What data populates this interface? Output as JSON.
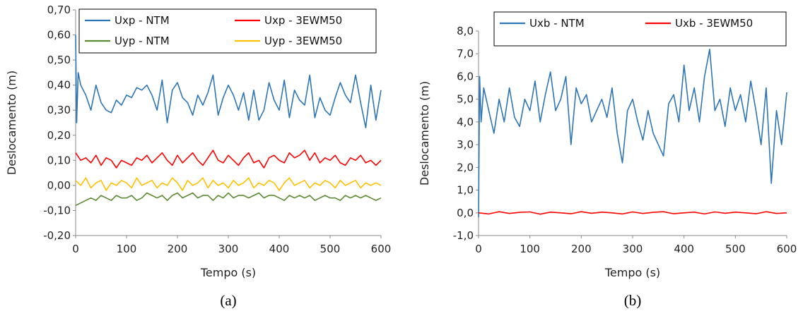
{
  "chart_data": [
    {
      "type": "line",
      "caption": "(a)",
      "xlabel": "Tempo (s)",
      "ylabel": "Deslocamento (m)",
      "xlim": [
        0,
        600
      ],
      "ylim": [
        -0.2,
        0.7
      ],
      "xticks": [
        "0",
        "100",
        "200",
        "300",
        "400",
        "500",
        "600"
      ],
      "yticks": [
        "0,70",
        "0,60",
        "0,50",
        "0,40",
        "0,30",
        "0,20",
        "0,10",
        "0,00",
        "-0,10",
        "-0,20"
      ],
      "legend_position": "top",
      "series": [
        {
          "name": "Uxp - NTM",
          "color": "#2e75b6",
          "x": [
            0,
            2,
            5,
            10,
            20,
            30,
            40,
            50,
            60,
            70,
            80,
            90,
            100,
            110,
            120,
            130,
            140,
            150,
            160,
            170,
            180,
            190,
            200,
            210,
            220,
            230,
            240,
            250,
            260,
            270,
            280,
            290,
            300,
            310,
            320,
            330,
            340,
            350,
            360,
            370,
            380,
            390,
            400,
            410,
            420,
            430,
            440,
            450,
            460,
            470,
            480,
            490,
            500,
            510,
            520,
            530,
            540,
            550,
            560,
            570,
            580,
            590,
            600
          ],
          "values": [
            0.6,
            0.25,
            0.45,
            0.4,
            0.36,
            0.3,
            0.4,
            0.33,
            0.3,
            0.29,
            0.34,
            0.32,
            0.36,
            0.35,
            0.39,
            0.38,
            0.4,
            0.36,
            0.3,
            0.42,
            0.25,
            0.38,
            0.41,
            0.35,
            0.33,
            0.28,
            0.36,
            0.32,
            0.37,
            0.44,
            0.28,
            0.35,
            0.4,
            0.36,
            0.3,
            0.37,
            0.26,
            0.38,
            0.26,
            0.3,
            0.41,
            0.34,
            0.3,
            0.42,
            0.27,
            0.38,
            0.34,
            0.32,
            0.44,
            0.27,
            0.35,
            0.3,
            0.28,
            0.35,
            0.41,
            0.36,
            0.33,
            0.44,
            0.33,
            0.23,
            0.4,
            0.26,
            0.38
          ]
        },
        {
          "name": "Uxp - 3EWM50",
          "color": "#ff0000",
          "x": [
            0,
            10,
            20,
            30,
            40,
            50,
            60,
            70,
            80,
            90,
            100,
            110,
            120,
            130,
            140,
            150,
            160,
            170,
            180,
            190,
            200,
            210,
            220,
            230,
            240,
            250,
            260,
            270,
            280,
            290,
            300,
            310,
            320,
            330,
            340,
            350,
            360,
            370,
            380,
            390,
            400,
            410,
            420,
            430,
            440,
            450,
            460,
            470,
            480,
            490,
            500,
            510,
            520,
            530,
            540,
            550,
            560,
            570,
            580,
            590,
            600
          ],
          "values": [
            0.13,
            0.1,
            0.11,
            0.09,
            0.12,
            0.08,
            0.11,
            0.1,
            0.07,
            0.1,
            0.09,
            0.08,
            0.11,
            0.1,
            0.12,
            0.09,
            0.11,
            0.13,
            0.1,
            0.08,
            0.12,
            0.09,
            0.11,
            0.13,
            0.1,
            0.08,
            0.11,
            0.14,
            0.1,
            0.09,
            0.12,
            0.1,
            0.08,
            0.11,
            0.13,
            0.09,
            0.1,
            0.07,
            0.11,
            0.12,
            0.1,
            0.09,
            0.13,
            0.11,
            0.12,
            0.14,
            0.1,
            0.13,
            0.09,
            0.11,
            0.1,
            0.12,
            0.09,
            0.08,
            0.11,
            0.1,
            0.12,
            0.09,
            0.1,
            0.08,
            0.1
          ]
        },
        {
          "name": "Uyp - NTM",
          "color": "#5a8a32",
          "x": [
            0,
            10,
            20,
            30,
            40,
            50,
            60,
            70,
            80,
            90,
            100,
            110,
            120,
            130,
            140,
            150,
            160,
            170,
            180,
            190,
            200,
            210,
            220,
            230,
            240,
            250,
            260,
            270,
            280,
            290,
            300,
            310,
            320,
            330,
            340,
            350,
            360,
            370,
            380,
            390,
            400,
            410,
            420,
            430,
            440,
            450,
            460,
            470,
            480,
            490,
            500,
            510,
            520,
            530,
            540,
            550,
            560,
            570,
            580,
            590,
            600
          ],
          "values": [
            -0.08,
            -0.07,
            -0.06,
            -0.05,
            -0.06,
            -0.04,
            -0.05,
            -0.06,
            -0.04,
            -0.05,
            -0.05,
            -0.04,
            -0.06,
            -0.05,
            -0.03,
            -0.04,
            -0.05,
            -0.04,
            -0.06,
            -0.04,
            -0.03,
            -0.05,
            -0.04,
            -0.03,
            -0.05,
            -0.04,
            -0.04,
            -0.06,
            -0.04,
            -0.05,
            -0.03,
            -0.05,
            -0.04,
            -0.04,
            -0.05,
            -0.04,
            -0.03,
            -0.05,
            -0.04,
            -0.04,
            -0.05,
            -0.06,
            -0.04,
            -0.05,
            -0.04,
            -0.05,
            -0.04,
            -0.06,
            -0.05,
            -0.04,
            -0.05,
            -0.05,
            -0.06,
            -0.04,
            -0.05,
            -0.04,
            -0.05,
            -0.04,
            -0.05,
            -0.06,
            -0.05
          ]
        },
        {
          "name": "Uyp - 3EWM50",
          "color": "#ffc000",
          "x": [
            0,
            10,
            20,
            30,
            40,
            50,
            60,
            70,
            80,
            90,
            100,
            110,
            120,
            130,
            140,
            150,
            160,
            170,
            180,
            190,
            200,
            210,
            220,
            230,
            240,
            250,
            260,
            270,
            280,
            290,
            300,
            310,
            320,
            330,
            340,
            350,
            360,
            370,
            380,
            390,
            400,
            410,
            420,
            430,
            440,
            450,
            460,
            470,
            480,
            490,
            500,
            510,
            520,
            530,
            540,
            550,
            560,
            570,
            580,
            590,
            600
          ],
          "values": [
            0.02,
            0.0,
            0.03,
            -0.01,
            0.01,
            0.02,
            -0.02,
            0.01,
            0.0,
            0.02,
            0.01,
            -0.01,
            0.03,
            0.0,
            0.01,
            0.02,
            -0.01,
            0.01,
            0.0,
            0.03,
            0.01,
            -0.02,
            0.02,
            0.0,
            0.01,
            0.03,
            -0.01,
            0.02,
            0.0,
            0.01,
            -0.01,
            0.02,
            0.0,
            0.01,
            0.03,
            -0.01,
            0.01,
            0.0,
            0.02,
            0.01,
            -0.02,
            0.01,
            0.03,
            0.0,
            0.01,
            0.02,
            -0.01,
            0.01,
            0.0,
            0.02,
            0.01,
            -0.01,
            0.02,
            0.0,
            0.01,
            0.02,
            -0.01,
            0.01,
            0.0,
            0.01,
            0.0
          ]
        }
      ]
    },
    {
      "type": "line",
      "caption": "(b)",
      "xlabel": "Tempo (s)",
      "ylabel": "Deslocamento (m)",
      "xlim": [
        0,
        600
      ],
      "ylim": [
        -1.0,
        8.0
      ],
      "xticks": [
        "0",
        "100",
        "200",
        "300",
        "400",
        "500",
        "600"
      ],
      "yticks": [
        "8,0",
        "7,0",
        "6,0",
        "5,0",
        "4,0",
        "3,0",
        "2,0",
        "1,0",
        "0,0",
        "-1,0"
      ],
      "legend_position": "top",
      "series": [
        {
          "name": "Uxb - NTM",
          "color": "#2e75b6",
          "x": [
            0,
            2,
            5,
            10,
            20,
            30,
            40,
            50,
            60,
            70,
            80,
            90,
            100,
            110,
            120,
            130,
            140,
            150,
            160,
            170,
            180,
            190,
            200,
            210,
            220,
            230,
            240,
            250,
            260,
            270,
            280,
            290,
            300,
            310,
            320,
            330,
            340,
            350,
            360,
            370,
            380,
            390,
            400,
            410,
            420,
            430,
            440,
            450,
            460,
            470,
            480,
            490,
            500,
            510,
            520,
            530,
            540,
            550,
            560,
            570,
            580,
            590,
            600
          ],
          "values": [
            -0.2,
            6.0,
            4.0,
            5.5,
            4.5,
            3.5,
            5.0,
            4.0,
            5.5,
            4.2,
            3.8,
            5.0,
            4.5,
            5.8,
            4.0,
            5.2,
            6.2,
            4.5,
            5.0,
            6.0,
            3.0,
            5.5,
            4.8,
            5.2,
            4.0,
            4.5,
            5.0,
            4.2,
            5.5,
            3.5,
            2.2,
            4.5,
            5.0,
            4.0,
            3.2,
            4.5,
            3.5,
            3.0,
            2.5,
            4.8,
            5.2,
            4.0,
            6.5,
            4.5,
            5.5,
            4.0,
            6.0,
            7.2,
            4.5,
            5.0,
            3.8,
            5.5,
            4.5,
            5.2,
            4.0,
            5.8,
            4.5,
            3.0,
            5.5,
            1.3,
            4.5,
            3.0,
            5.3
          ]
        },
        {
          "name": "Uxb - 3EWM50",
          "color": "#ff0000",
          "x": [
            0,
            20,
            40,
            60,
            80,
            100,
            120,
            140,
            160,
            180,
            200,
            220,
            240,
            260,
            280,
            300,
            320,
            340,
            360,
            380,
            400,
            420,
            440,
            460,
            480,
            500,
            520,
            540,
            560,
            580,
            600
          ],
          "values": [
            0.0,
            -0.05,
            0.05,
            -0.03,
            0.02,
            0.04,
            -0.06,
            0.03,
            0.0,
            -0.04,
            0.05,
            -0.02,
            0.03,
            0.0,
            -0.05,
            0.04,
            -0.03,
            0.02,
            0.05,
            -0.04,
            0.0,
            0.03,
            -0.05,
            0.04,
            -0.02,
            0.03,
            0.0,
            -0.04,
            0.05,
            -0.03,
            0.0
          ]
        }
      ]
    }
  ]
}
